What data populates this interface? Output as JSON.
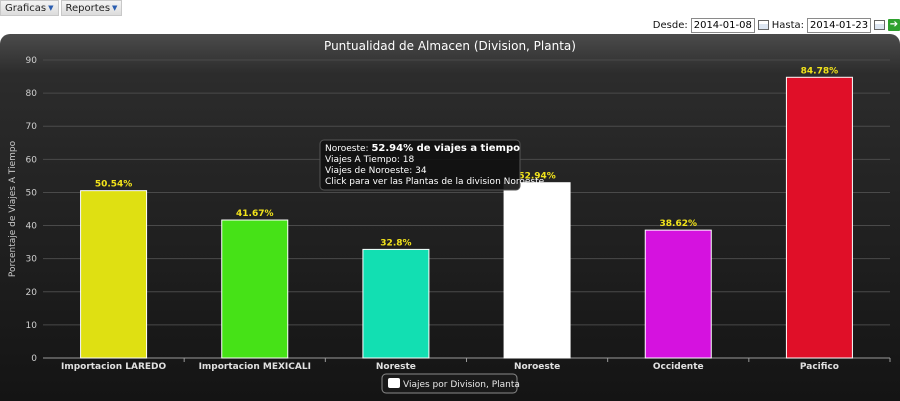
{
  "menu": {
    "items": [
      "Graficas",
      "Reportes"
    ]
  },
  "filters": {
    "desde_label": "Desde:",
    "desde_value": "2014-01-08",
    "hasta_label": "Hasta:",
    "hasta_value": "2014-01-23"
  },
  "chart_data": {
    "type": "bar",
    "title": "Puntualidad de Almacen (Division, Planta)",
    "ylabel": "Porcentaje de Viajes A Tiempo",
    "xlabel": "",
    "ylim": [
      0,
      90
    ],
    "yticks": [
      0,
      10,
      20,
      30,
      40,
      50,
      60,
      70,
      80,
      90
    ],
    "grid": true,
    "legend_position": "bottom-center",
    "categories": [
      "Importacion LAREDO",
      "Importacion MEXICALI",
      "Noreste",
      "Noroeste",
      "Occidente",
      "Pacifico"
    ],
    "series": [
      {
        "name": "Viajes por Division, Planta",
        "values": [
          50.54,
          41.67,
          32.8,
          52.94,
          38.62,
          84.78
        ],
        "labels": [
          "50.54%",
          "41.67%",
          "32.8%",
          "52.94%",
          "38.62%",
          "84.78%"
        ],
        "colors": [
          "#dfe012",
          "#46e217",
          "#12dfb2",
          "#ffffff",
          "#d512df",
          "#e00f28"
        ]
      }
    ],
    "label_color": "#f2e31b",
    "tooltip": {
      "line1_prefix": "Noroeste: ",
      "line1_bold": "52.94% de viajes a tiempo",
      "line2": "Viajes A Tiempo: 18",
      "line3": "Viajes de Noroeste: 34",
      "line4": "Click para ver las Plantas de la division Noroeste."
    }
  }
}
